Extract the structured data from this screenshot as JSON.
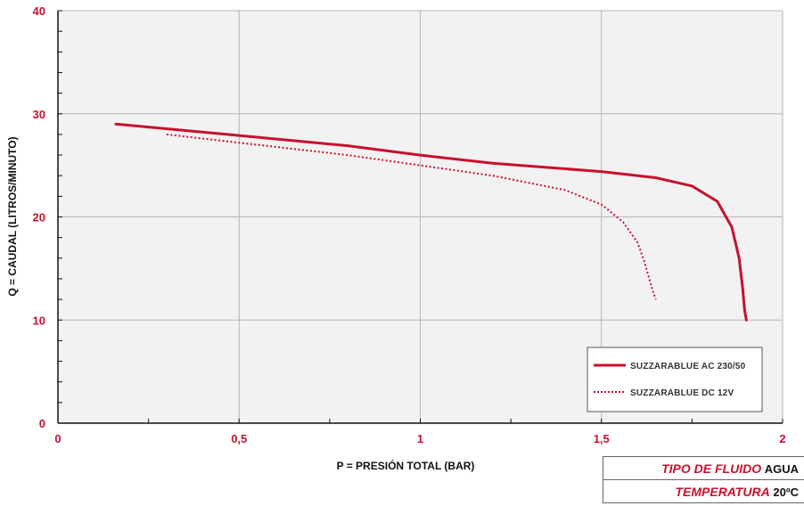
{
  "chart_data": {
    "type": "line",
    "title": "",
    "xlabel": "P = PRESIÓN TOTAL (BAR)",
    "ylabel": "Q = CAUDAL (LITROS/MINUTO)",
    "xlim": [
      0,
      2
    ],
    "ylim": [
      0,
      40
    ],
    "x_ticks": [
      {
        "value": 0,
        "label": "0"
      },
      {
        "value": 0.5,
        "label": "0,5"
      },
      {
        "value": 1,
        "label": "1"
      },
      {
        "value": 1.5,
        "label": "1,5"
      },
      {
        "value": 2,
        "label": "2"
      }
    ],
    "y_ticks": [
      {
        "value": 0,
        "label": "0"
      },
      {
        "value": 10,
        "label": "10"
      },
      {
        "value": 20,
        "label": "20"
      },
      {
        "value": 30,
        "label": "30"
      },
      {
        "value": 40,
        "label": "40"
      }
    ],
    "grid": true,
    "legend_position": "bottom-right",
    "series": [
      {
        "name": "SUZZARABLUE AC 230/50",
        "style": "solid",
        "color": "#c8102e",
        "x": [
          0.16,
          0.5,
          0.8,
          1.0,
          1.2,
          1.5,
          1.65,
          1.75,
          1.82,
          1.86,
          1.88,
          1.89,
          1.895,
          1.9
        ],
        "y": [
          29,
          27.9,
          26.9,
          26.0,
          25.2,
          24.4,
          23.8,
          23.0,
          21.5,
          19.0,
          16.0,
          13.0,
          11.0,
          10.0
        ]
      },
      {
        "name": "SUZZARABLUE DC 12V",
        "style": "dotted",
        "color": "#c8102e",
        "x": [
          0.3,
          0.5,
          0.8,
          1.0,
          1.2,
          1.4,
          1.5,
          1.56,
          1.6,
          1.62,
          1.64,
          1.65
        ],
        "y": [
          28,
          27.2,
          26.0,
          25.0,
          24.0,
          22.6,
          21.2,
          19.5,
          17.5,
          15.5,
          13.0,
          12.0
        ]
      }
    ]
  },
  "info": {
    "rows": [
      {
        "label": "TIPO DE FLUIDO",
        "value": "AGUA"
      },
      {
        "label": "TEMPERATURA",
        "value": "20ºC"
      }
    ]
  }
}
